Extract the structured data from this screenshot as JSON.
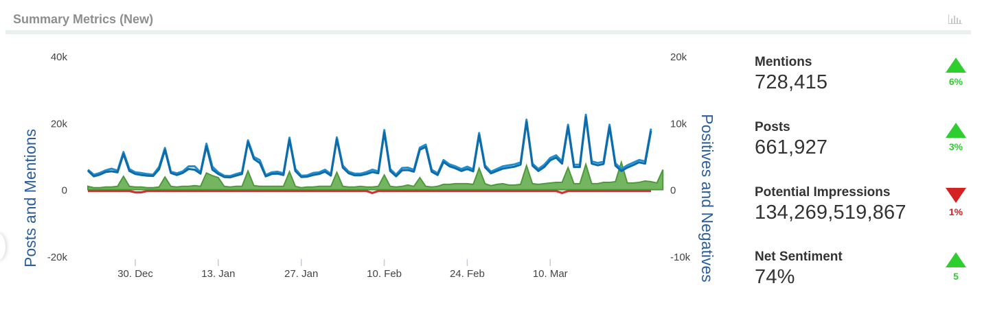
{
  "header": {
    "title": "Summary Metrics (New)",
    "icon": "bar-chart-icon"
  },
  "chart_data": {
    "type": "line",
    "title": "",
    "y_left": {
      "label": "Posts and Mentions",
      "ticks": [
        "40k",
        "20k",
        "0",
        "-20k"
      ],
      "range": [
        -20000,
        40000
      ]
    },
    "y_right": {
      "label": "Positives and Negatives",
      "ticks": [
        "20k",
        "10k",
        "0",
        "-10k"
      ],
      "range": [
        -10000,
        20000
      ]
    },
    "x_ticks": [
      "30. Dec",
      "13. Jan",
      "27. Jan",
      "10. Feb",
      "24. Feb",
      "10. Mar"
    ],
    "x_tick_days": [
      8,
      22,
      36,
      50,
      64,
      78
    ],
    "grid": false,
    "legend": "none",
    "series": [
      {
        "axis": "left",
        "type": "line",
        "color": "#1f8fd0",
        "values": [
          6000,
          4500,
          5000,
          5800,
          6300,
          5700,
          11300,
          6200,
          5200,
          5000,
          4700,
          4500,
          6800,
          12500,
          5400,
          4900,
          5500,
          7000,
          7000,
          5200,
          13800,
          6900,
          5200,
          4200,
          4100,
          4700,
          5200,
          14800,
          9800,
          8900,
          4400,
          5200,
          5400,
          4900,
          15600,
          6200,
          4200,
          4300,
          5000,
          5200,
          6000,
          4700,
          15700,
          7200,
          5400,
          4800,
          4800,
          5300,
          6000,
          5500,
          17900,
          6200,
          4500,
          6500,
          6600,
          6000,
          12600,
          13500,
          6000,
          4900,
          8900,
          7600,
          7000,
          6200,
          6900,
          6100,
          17000,
          7300,
          5400,
          6200,
          7000,
          7300,
          7600,
          8200,
          21000,
          7800,
          6200,
          7500,
          9500,
          10300,
          8500,
          19500,
          7500,
          7500,
          22500,
          8500,
          8000,
          8400,
          19500,
          7900,
          6200,
          7300,
          8100,
          8900,
          8500,
          18300
        ]
      },
      {
        "axis": "left",
        "type": "line",
        "color": "#0e6aa8",
        "values": [
          5700,
          4000,
          4500,
          5300,
          5500,
          5200,
          10700,
          5600,
          4700,
          4400,
          4200,
          4100,
          6100,
          11900,
          5000,
          4400,
          5000,
          6200,
          6000,
          4800,
          13000,
          6000,
          4700,
          3800,
          3700,
          4200,
          4700,
          14300,
          9200,
          8000,
          4000,
          4700,
          4800,
          4400,
          15000,
          5600,
          3800,
          3900,
          4400,
          4700,
          5400,
          4200,
          15100,
          6600,
          4900,
          4300,
          4300,
          4700,
          5300,
          4900,
          17200,
          5600,
          4000,
          5800,
          5900,
          5400,
          12000,
          12800,
          5400,
          4400,
          8300,
          7000,
          6400,
          5600,
          6200,
          5500,
          16300,
          6700,
          4900,
          5600,
          6300,
          6600,
          6900,
          7500,
          20300,
          7200,
          5600,
          6800,
          8800,
          9600,
          7800,
          18800,
          6800,
          6800,
          21800,
          7800,
          7300,
          7700,
          18800,
          7200,
          5600,
          6600,
          7400,
          8200,
          7800,
          17600
        ]
      },
      {
        "axis": "right",
        "type": "area",
        "color": "#5aa845",
        "values": [
          500,
          300,
          300,
          400,
          400,
          500,
          2000,
          500,
          400,
          400,
          300,
          300,
          400,
          1900,
          500,
          400,
          500,
          500,
          600,
          500,
          2500,
          2100,
          1800,
          500,
          400,
          500,
          500,
          2800,
          600,
          500,
          500,
          500,
          500,
          500,
          2700,
          500,
          300,
          400,
          400,
          500,
          500,
          500,
          2600,
          500,
          400,
          400,
          500,
          400,
          400,
          500,
          2200,
          500,
          400,
          500,
          700,
          500,
          1800,
          500,
          400,
          500,
          800,
          800,
          900,
          900,
          900,
          800,
          3200,
          900,
          600,
          800,
          900,
          700,
          700,
          800,
          3600,
          900,
          800,
          900,
          1000,
          1100,
          1100,
          3300,
          900,
          900,
          3800,
          900,
          900,
          1100,
          1100,
          1200,
          4100,
          1000,
          1000,
          1100,
          1300,
          1200,
          1000,
          3000
        ]
      },
      {
        "axis": "right",
        "type": "line",
        "color": "#cd3333",
        "values": [
          -200,
          -200,
          -200,
          -200,
          -200,
          -200,
          -200,
          -200,
          -400,
          -400,
          -200,
          -200,
          -200,
          -200,
          -200,
          -200,
          -200,
          -200,
          -200,
          -200,
          -200,
          -200,
          -200,
          -200,
          -200,
          -200,
          -200,
          -200,
          -200,
          -200,
          -200,
          -200,
          -200,
          -200,
          -200,
          -200,
          -200,
          -200,
          -200,
          -200,
          -200,
          -200,
          -200,
          -200,
          -200,
          -200,
          -200,
          -200,
          -500,
          -200,
          -200,
          -200,
          -200,
          -200,
          -200,
          -200,
          -200,
          -200,
          -200,
          -200,
          -200,
          -200,
          -200,
          -200,
          -200,
          -200,
          -200,
          -200,
          -200,
          -200,
          -200,
          -200,
          -200,
          -200,
          -200,
          -200,
          -200,
          -200,
          -200,
          -200,
          -500,
          -200,
          -200,
          -200,
          -200,
          -200,
          -200,
          -200,
          -200,
          -200,
          -200,
          -200,
          -200,
          -200,
          -200,
          -200
        ]
      }
    ]
  },
  "metrics": [
    {
      "label": "Mentions",
      "value": "728,415",
      "change": "6%",
      "direction": "up"
    },
    {
      "label": "Posts",
      "value": "661,927",
      "change": "3%",
      "direction": "up"
    },
    {
      "label": "Potential Impressions",
      "value": "134,269,519,867",
      "change": "1%",
      "direction": "down"
    },
    {
      "label": "Net Sentiment",
      "value": "74%",
      "change": "5",
      "direction": "up"
    }
  ],
  "colors": {
    "up": "#2fce2f",
    "down": "#d42222"
  }
}
